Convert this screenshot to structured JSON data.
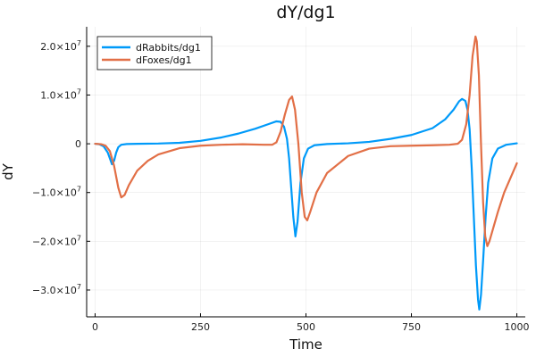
{
  "chart_data": {
    "type": "line",
    "title": "dY/dg1",
    "xlabel": "Time",
    "ylabel": "dY",
    "xlim": [
      -20,
      1020
    ],
    "ylim": [
      -35500000,
      24000000
    ],
    "xticks": [
      0,
      250,
      500,
      750,
      1000
    ],
    "xtick_labels": [
      "0",
      "250",
      "500",
      "750",
      "1000"
    ],
    "yticks": [
      20000000,
      10000000,
      0,
      -10000000,
      -20000000,
      -30000000
    ],
    "ytick_labels": [
      {
        "mantissa": "2.0×10",
        "exp": "7"
      },
      {
        "mantissa": "1.0×10",
        "exp": "7"
      },
      {
        "mantissa": "0",
        "exp": ""
      },
      {
        "mantissa": "−1.0×10",
        "exp": "7"
      },
      {
        "mantissa": "−2.0×10",
        "exp": "7"
      },
      {
        "mantissa": "−3.0×10",
        "exp": "7"
      }
    ],
    "grid": true,
    "legend_position": "top-left",
    "series": [
      {
        "name": "dRabbits/dg1",
        "color": "#009af9",
        "points": [
          [
            0,
            0
          ],
          [
            10,
            -100000
          ],
          [
            20,
            -500000
          ],
          [
            30,
            -1800000
          ],
          [
            40,
            -4200000
          ],
          [
            45,
            -3500000
          ],
          [
            50,
            -1800000
          ],
          [
            55,
            -700000
          ],
          [
            62,
            -200000
          ],
          [
            75,
            -50000
          ],
          [
            100,
            0
          ],
          [
            150,
            50000
          ],
          [
            200,
            200000
          ],
          [
            250,
            600000
          ],
          [
            300,
            1300000
          ],
          [
            340,
            2100000
          ],
          [
            380,
            3100000
          ],
          [
            410,
            4000000
          ],
          [
            430,
            4600000
          ],
          [
            440,
            4500000
          ],
          [
            448,
            3500000
          ],
          [
            455,
            1000000
          ],
          [
            460,
            -3000000
          ],
          [
            465,
            -9000000
          ],
          [
            470,
            -15000000
          ],
          [
            475,
            -19000000
          ],
          [
            480,
            -16000000
          ],
          [
            487,
            -8000000
          ],
          [
            495,
            -3000000
          ],
          [
            505,
            -1000000
          ],
          [
            520,
            -300000
          ],
          [
            550,
            -50000
          ],
          [
            600,
            100000
          ],
          [
            650,
            400000
          ],
          [
            700,
            1000000
          ],
          [
            750,
            1800000
          ],
          [
            800,
            3200000
          ],
          [
            830,
            5000000
          ],
          [
            850,
            7000000
          ],
          [
            863,
            8700000
          ],
          [
            870,
            9200000
          ],
          [
            878,
            8800000
          ],
          [
            883,
            7000000
          ],
          [
            888,
            3000000
          ],
          [
            893,
            -5000000
          ],
          [
            898,
            -15000000
          ],
          [
            903,
            -25000000
          ],
          [
            908,
            -32000000
          ],
          [
            911,
            -34000000
          ],
          [
            915,
            -31000000
          ],
          [
            920,
            -24000000
          ],
          [
            926,
            -15000000
          ],
          [
            932,
            -8000000
          ],
          [
            942,
            -3000000
          ],
          [
            955,
            -1000000
          ],
          [
            975,
            -200000
          ],
          [
            1000,
            100000
          ]
        ]
      },
      {
        "name": "dFoxes/dg1",
        "color": "#e26f46",
        "points": [
          [
            0,
            0
          ],
          [
            15,
            -100000
          ],
          [
            25,
            -400000
          ],
          [
            35,
            -1500000
          ],
          [
            45,
            -4500000
          ],
          [
            55,
            -9000000
          ],
          [
            62,
            -11000000
          ],
          [
            70,
            -10500000
          ],
          [
            80,
            -8500000
          ],
          [
            100,
            -5500000
          ],
          [
            125,
            -3500000
          ],
          [
            150,
            -2200000
          ],
          [
            200,
            -900000
          ],
          [
            250,
            -400000
          ],
          [
            300,
            -200000
          ],
          [
            350,
            -100000
          ],
          [
            400,
            -200000
          ],
          [
            420,
            -200000
          ],
          [
            430,
            300000
          ],
          [
            440,
            2500000
          ],
          [
            450,
            6000000
          ],
          [
            460,
            9000000
          ],
          [
            467,
            9700000
          ],
          [
            474,
            7000000
          ],
          [
            482,
            0
          ],
          [
            490,
            -10000000
          ],
          [
            497,
            -15000000
          ],
          [
            503,
            -15700000
          ],
          [
            510,
            -14000000
          ],
          [
            525,
            -10000000
          ],
          [
            550,
            -6000000
          ],
          [
            600,
            -2500000
          ],
          [
            650,
            -1000000
          ],
          [
            700,
            -500000
          ],
          [
            750,
            -400000
          ],
          [
            800,
            -300000
          ],
          [
            840,
            -200000
          ],
          [
            860,
            0
          ],
          [
            870,
            800000
          ],
          [
            880,
            4000000
          ],
          [
            888,
            10000000
          ],
          [
            895,
            18000000
          ],
          [
            902,
            22000000
          ],
          [
            905,
            21000000
          ],
          [
            910,
            14000000
          ],
          [
            915,
            0
          ],
          [
            920,
            -12000000
          ],
          [
            925,
            -19000000
          ],
          [
            930,
            -21000000
          ],
          [
            935,
            -20000000
          ],
          [
            945,
            -17000000
          ],
          [
            955,
            -14000000
          ],
          [
            970,
            -10000000
          ],
          [
            985,
            -7000000
          ],
          [
            1000,
            -4000000
          ]
        ]
      }
    ]
  }
}
